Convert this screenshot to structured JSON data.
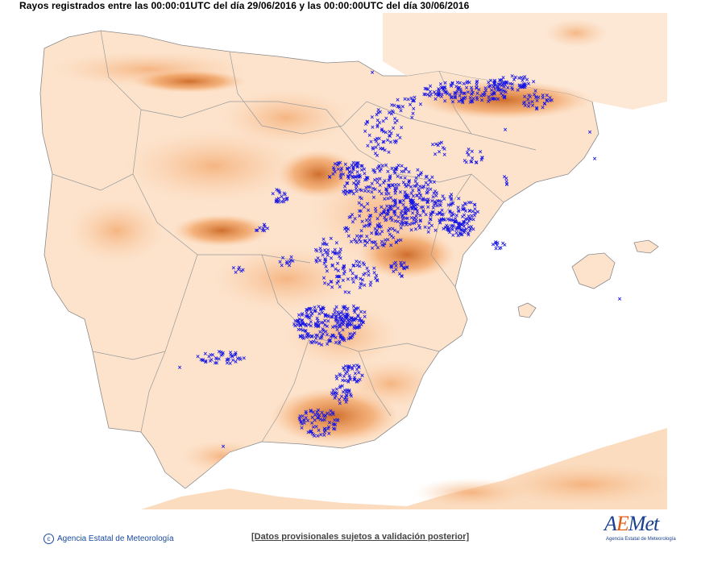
{
  "header": {
    "title": "Rayos registrados entre las 00:00:01UTC del día 29/06/2016 y las 00:00:00UTC del día 30/06/2016"
  },
  "map": {
    "region": "Iberian Peninsula and Balearic Islands",
    "base_layer": "orographic relief (orange shading)",
    "marker_symbol": "×",
    "marker_meaning": "lightning strike",
    "colors": {
      "land": "#fde3cc",
      "relief_mid": "#f3a66a",
      "relief_high": "#c65a12",
      "borders": "#9a9a9a",
      "strikes": "#1414e6",
      "sea": "#ffffff"
    }
  },
  "footer": {
    "credit": "Agencia Estatal de Meteorología",
    "notice": "[Datos provisionales sujetos a validación posterior]"
  },
  "logo": {
    "word_a": "A",
    "word_e": "E",
    "word_rest": "Met",
    "subtitle": "Agencia Estatal de Meteorología"
  }
}
